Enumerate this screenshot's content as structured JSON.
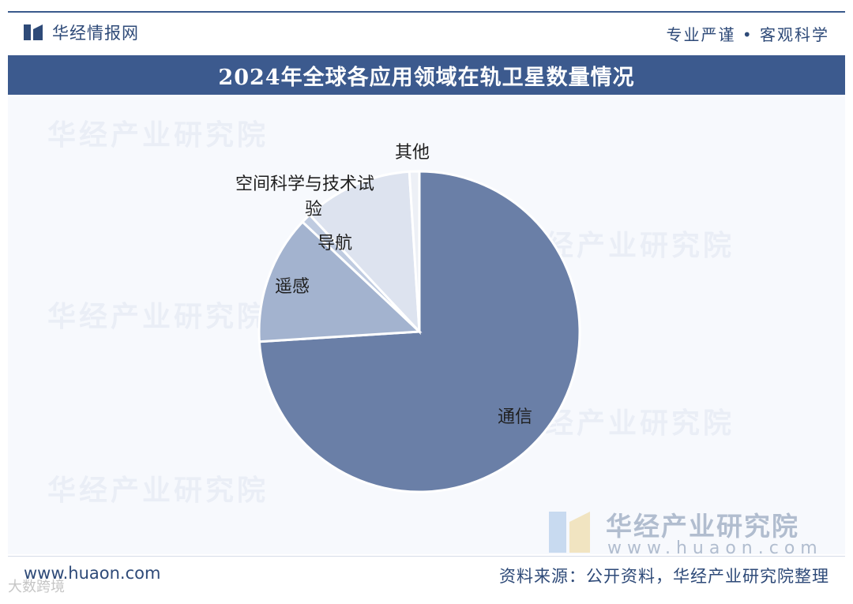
{
  "header": {
    "logo_text": "华经情报网",
    "slogan": "专业严谨 • 客观科学"
  },
  "chart_data": {
    "type": "pie",
    "title": "2024年全球各应用领域在轨卫星数量情况",
    "slices": [
      {
        "name": "通信",
        "value": 74.0,
        "color": "#6a7fa7"
      },
      {
        "name": "遥感",
        "value": 13.0,
        "color": "#a3b3cf"
      },
      {
        "name": "导航",
        "value": 1.0,
        "color": "#bfcbe0"
      },
      {
        "name": "空间科学与技术试验",
        "value": 11.0,
        "color": "#dde3ef"
      },
      {
        "name": "其他",
        "value": 1.0,
        "color": "#edf0f6"
      }
    ],
    "label_lines": {
      "空间科学与技术试验": [
        "空间科学与技术试",
        "验"
      ]
    }
  },
  "watermarks": {
    "text": "华经产业研究院",
    "brand_cn": "华经产业研究院",
    "brand_url": "www.huaon.com",
    "corner": "大数跨境"
  },
  "footer": {
    "url": "www.huaon.com",
    "source": "资料来源：公开资料，华经产业研究院整理"
  }
}
